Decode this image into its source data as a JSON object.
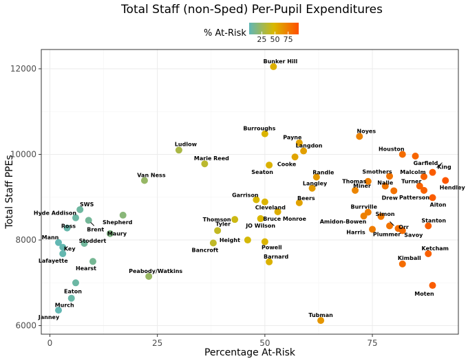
{
  "chart_data": {
    "type": "scatter",
    "title": "Total Staff (non-Sped) Per-Pupil Expenditures",
    "xlabel": "Percentage At-Risk",
    "ylabel": "Total Staff PPEs",
    "xlim": [
      -2,
      95
    ],
    "ylim": [
      5800,
      12450
    ],
    "x_ticks": [
      0,
      25,
      50,
      75
    ],
    "y_ticks": [
      6000,
      8000,
      10000,
      12000
    ],
    "grid": true,
    "legend": {
      "title": "% At-Risk",
      "placement": "top",
      "ticks": [
        25,
        50,
        75
      ],
      "range": [
        1,
        95
      ],
      "colors": [
        "#5fb7b7",
        "#d9b800",
        "#ff4f00"
      ]
    },
    "points": [
      {
        "label": "Bunker Hill",
        "x": 52,
        "y": 12050
      },
      {
        "label": "Noyes",
        "x": 72,
        "y": 10420
      },
      {
        "label": "Burroughs",
        "x": 50,
        "y": 10480
      },
      {
        "label": "Payne",
        "x": 58,
        "y": 10270
      },
      {
        "label": "Langdon",
        "x": 59,
        "y": 10080
      },
      {
        "label": "Houston",
        "x": 82,
        "y": 10000
      },
      {
        "label": "Garfield",
        "x": 85,
        "y": 9960
      },
      {
        "label": "King",
        "x": 89,
        "y": 9580
      },
      {
        "label": "Ludlow",
        "x": 30,
        "y": 10100
      },
      {
        "label": "Marie Reed",
        "x": 36,
        "y": 9780
      },
      {
        "label": "Cooke",
        "x": 57,
        "y": 9940
      },
      {
        "label": "Seaton",
        "x": 51,
        "y": 9750
      },
      {
        "label": "Randle",
        "x": 62,
        "y": 9470
      },
      {
        "label": "Smothers",
        "x": 79,
        "y": 9490
      },
      {
        "label": "Malcolm",
        "x": 87,
        "y": 9480
      },
      {
        "label": "Van Ness",
        "x": 22,
        "y": 9390
      },
      {
        "label": "Thomas",
        "x": 74,
        "y": 9370
      },
      {
        "label": "Nalle",
        "x": 78,
        "y": 9260
      },
      {
        "label": "Turner",
        "x": 86,
        "y": 9260
      },
      {
        "label": "Hendley",
        "x": 92,
        "y": 9390
      },
      {
        "label": "Langley",
        "x": 61,
        "y": 9210
      },
      {
        "label": "Miner",
        "x": 71,
        "y": 9160
      },
      {
        "label": "Drew",
        "x": 80,
        "y": 9150
      },
      {
        "label": "Patterson",
        "x": 87,
        "y": 9160
      },
      {
        "label": "Garrison",
        "x": 48,
        "y": 8940
      },
      {
        "label": "Aiton",
        "x": 89,
        "y": 8990
      },
      {
        "label": "Beers",
        "x": 58,
        "y": 8870
      },
      {
        "label": "Cleveland",
        "x": 50,
        "y": 8890
      },
      {
        "label": "SWS",
        "x": 7,
        "y": 8710
      },
      {
        "label": "Burrville",
        "x": 74,
        "y": 8650
      },
      {
        "label": "Bruce Monroe",
        "x": 53,
        "y": 8660
      },
      {
        "label": "Hyde Addison",
        "x": 6,
        "y": 8520
      },
      {
        "label": "Shepherd",
        "x": 17,
        "y": 8580
      },
      {
        "label": "Thomson",
        "x": 43,
        "y": 8480
      },
      {
        "label": "Simon",
        "x": 77,
        "y": 8550
      },
      {
        "label": "Amidon-Bowen",
        "x": 73,
        "y": 8560
      },
      {
        "label": "JO Wilson",
        "x": 49,
        "y": 8500
      },
      {
        "label": "Stanton",
        "x": 88,
        "y": 8330
      },
      {
        "label": "Brent",
        "x": 9,
        "y": 8460
      },
      {
        "label": "Ross",
        "x": 4,
        "y": 8280
      },
      {
        "label": "Harris",
        "x": 75,
        "y": 8250
      },
      {
        "label": "Orr",
        "x": 81,
        "y": 8270
      },
      {
        "label": "Tyler",
        "x": 39,
        "y": 8220
      },
      {
        "label": "Maury",
        "x": 14,
        "y": 8150
      },
      {
        "label": "Savoy",
        "x": 82,
        "y": 8220
      },
      {
        "label": "Plummer",
        "x": 79,
        "y": 8330
      },
      {
        "label": "Height",
        "x": 46,
        "y": 8000
      },
      {
        "label": "Mann",
        "x": 2,
        "y": 7940
      },
      {
        "label": "Stoddert",
        "x": 8,
        "y": 7920
      },
      {
        "label": "Bancroft",
        "x": 38,
        "y": 7930
      },
      {
        "label": "Powell",
        "x": 50,
        "y": 7960
      },
      {
        "label": "Key",
        "x": 3,
        "y": 7830
      },
      {
        "label": "Ketcham",
        "x": 88,
        "y": 7680
      },
      {
        "label": "Lafayette",
        "x": 3,
        "y": 7680
      },
      {
        "label": "Hearst",
        "x": 10,
        "y": 7500
      },
      {
        "label": "Barnard",
        "x": 51,
        "y": 7490
      },
      {
        "label": "Kimball",
        "x": 82,
        "y": 7440
      },
      {
        "label": "Peabody/Watkins",
        "x": 23,
        "y": 7150
      },
      {
        "label": "Eaton",
        "x": 6,
        "y": 7000
      },
      {
        "label": "Moten",
        "x": 89,
        "y": 6940
      },
      {
        "label": "Murch",
        "x": 5,
        "y": 6640
      },
      {
        "label": "Janney",
        "x": 2,
        "y": 6360
      },
      {
        "label": "Tubman",
        "x": 63,
        "y": 6120
      }
    ]
  }
}
